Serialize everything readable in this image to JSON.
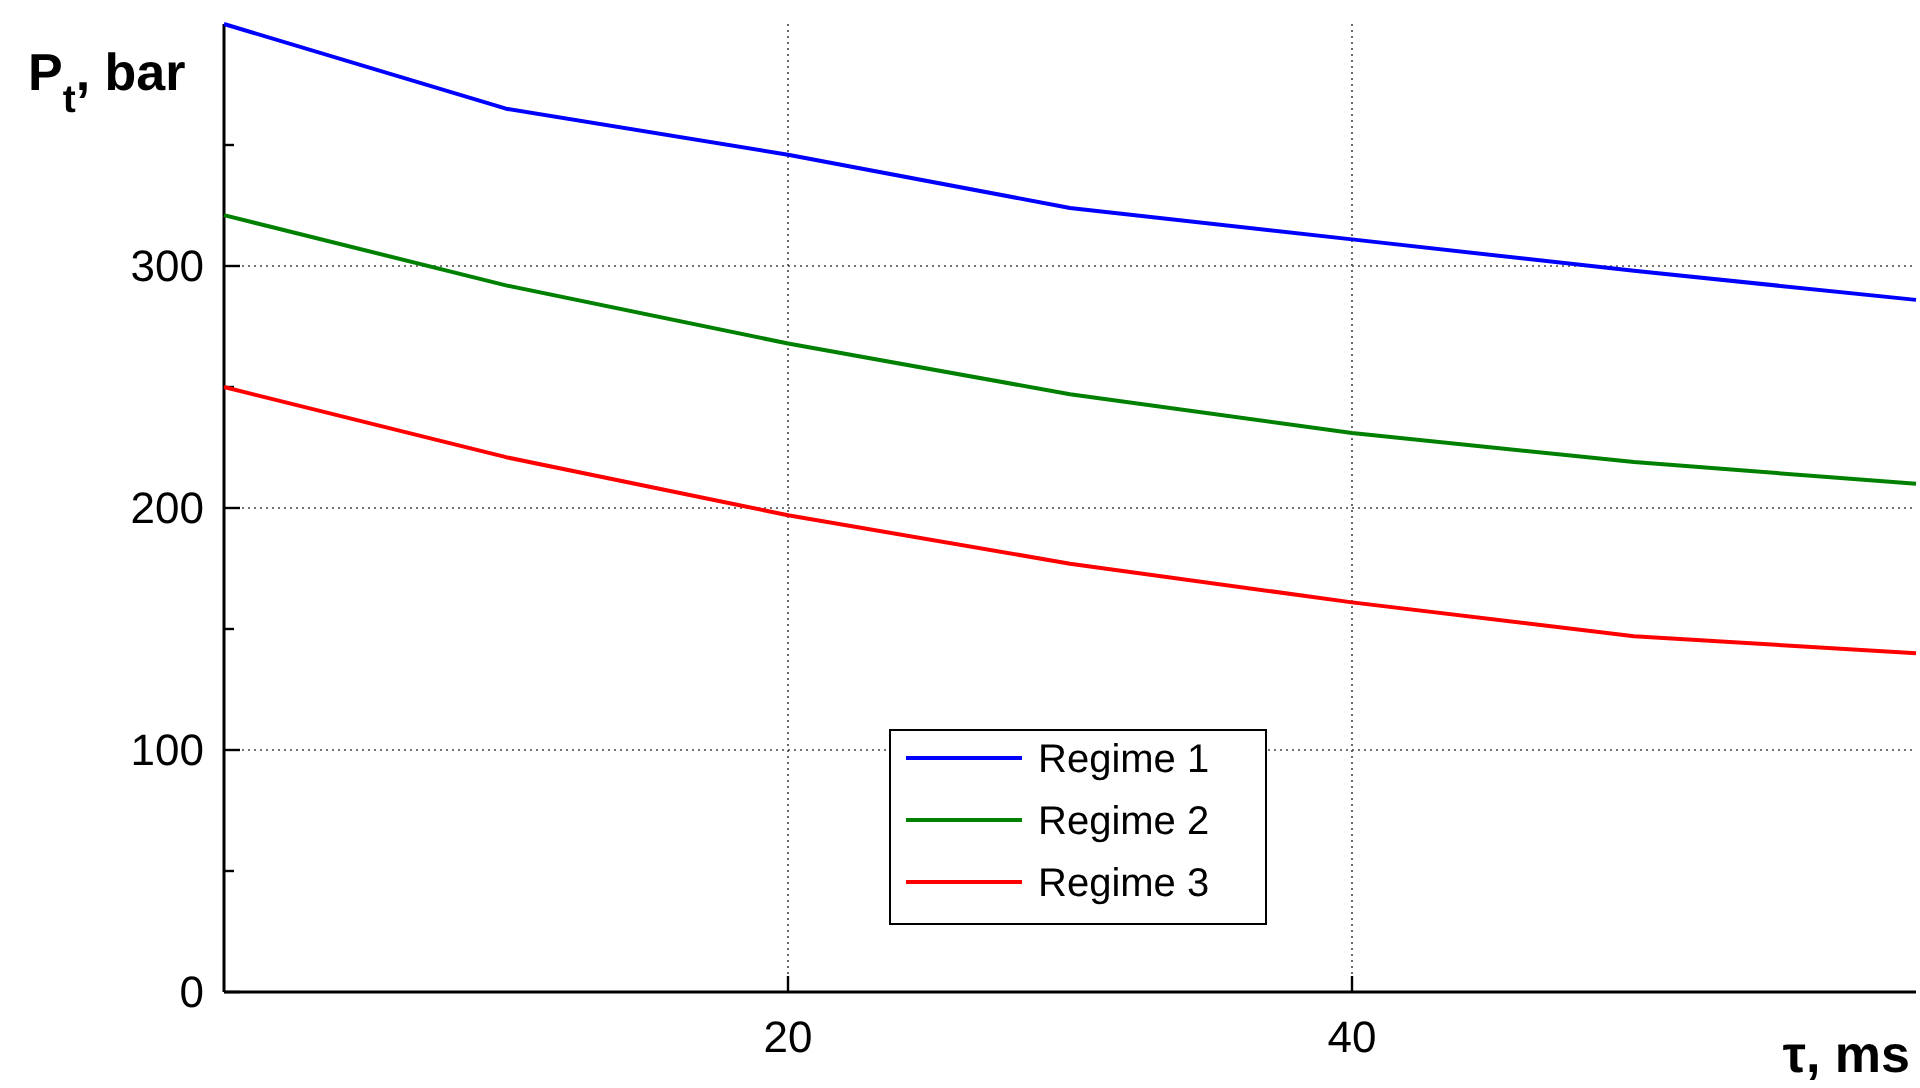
{
  "chart_data": {
    "type": "line",
    "xlabel": "τ, ms",
    "ylabel": "P$_{t}$, bar",
    "x": [
      0,
      10,
      20,
      30,
      40,
      50,
      60
    ],
    "series": [
      {
        "name": "Regime 1",
        "color": "#0000ff",
        "values": [
          400,
          365,
          346,
          324,
          311,
          298,
          286
        ]
      },
      {
        "name": "Regime 2",
        "color": "#008000",
        "values": [
          321,
          292,
          268,
          247,
          231,
          219,
          210
        ]
      },
      {
        "name": "Regime 3",
        "color": "#ff0000",
        "values": [
          250,
          221,
          197,
          177,
          161,
          147,
          140
        ]
      }
    ],
    "xlim": [
      0,
      60
    ],
    "xticks": [
      20,
      40
    ],
    "ylim": [
      0,
      400
    ],
    "yticks": [
      0,
      {
        "value": 50,
        "label": null
      },
      100,
      {
        "value": 150,
        "label": null
      },
      200,
      {
        "value": 250,
        "label": null
      },
      300,
      {
        "value": 350,
        "label": null
      }
    ],
    "grid": true,
    "legend": "bottom",
    "marker": "none",
    "line_style": "solid"
  }
}
